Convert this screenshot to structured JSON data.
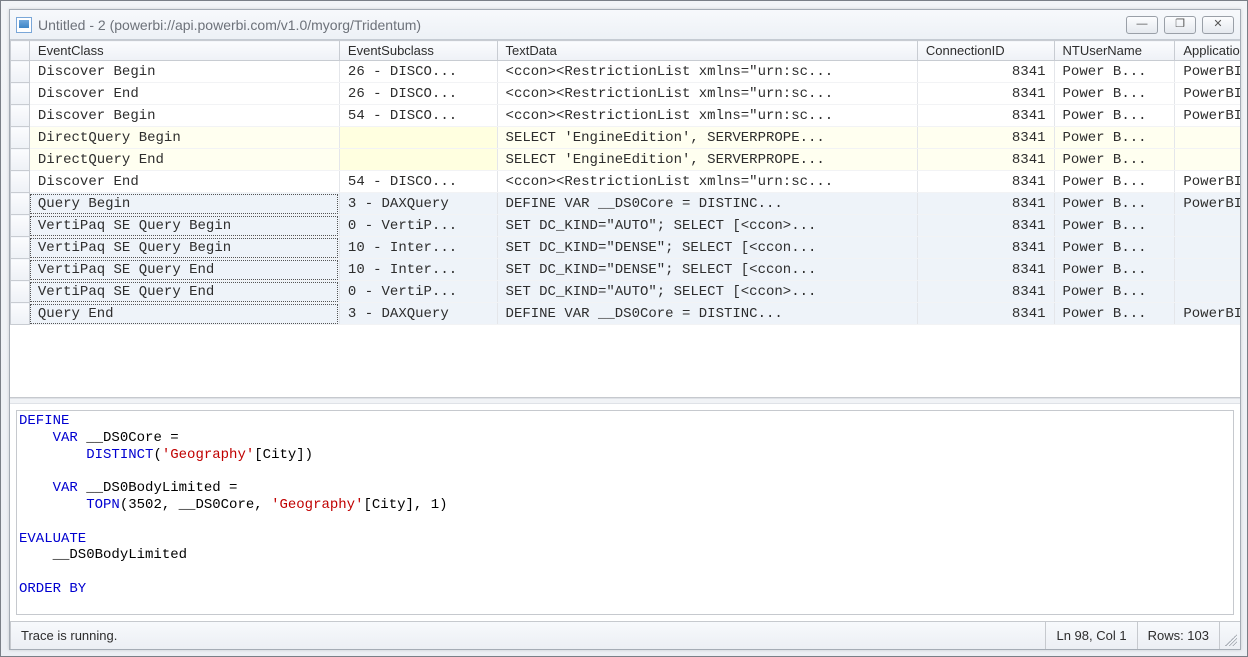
{
  "window": {
    "title": "Untitled - 2 (powerbi://api.powerbi.com/v1.0/myorg/Tridentum)"
  },
  "columns": {
    "event": "EventClass",
    "sub": "EventSubclass",
    "text": "TextData",
    "conn": "ConnectionID",
    "user": "NTUserName",
    "app": "Application"
  },
  "rows": [
    {
      "event": "Discover Begin",
      "sub": "26 - DISCO...",
      "text": "<ccon><RestrictionList xmlns=\"urn:sc...",
      "conn": "8341",
      "user": "Power B...",
      "app": "PowerBI",
      "cls": ""
    },
    {
      "event": "Discover End",
      "sub": "26 - DISCO...",
      "text": "<ccon><RestrictionList xmlns=\"urn:sc...",
      "conn": "8341",
      "user": "Power B...",
      "app": "PowerBI",
      "cls": ""
    },
    {
      "event": "Discover Begin",
      "sub": "54 - DISCO...",
      "text": "<ccon><RestrictionList xmlns=\"urn:sc...",
      "conn": "8341",
      "user": "Power B...",
      "app": "PowerBI",
      "cls": ""
    },
    {
      "event": "DirectQuery Begin",
      "sub": "",
      "text": " SELECT 'EngineEdition', SERVERPROPE...",
      "conn": "8341",
      "user": "Power B...",
      "app": "",
      "cls": "row-yellow"
    },
    {
      "event": "DirectQuery End",
      "sub": "",
      "text": " SELECT 'EngineEdition', SERVERPROPE...",
      "conn": "8341",
      "user": "Power B...",
      "app": "",
      "cls": "row-yellow"
    },
    {
      "event": "Discover End",
      "sub": "54 - DISCO...",
      "text": "<ccon><RestrictionList xmlns=\"urn:sc...",
      "conn": "8341",
      "user": "Power B...",
      "app": "PowerBI",
      "cls": ""
    },
    {
      "event": "Query Begin",
      "sub": "3 - DAXQuery",
      "text": "DEFINE   VAR __DS0Core =     DISTINC...",
      "conn": "8341",
      "user": "Power B...",
      "app": "PowerBI",
      "cls": "row-sel"
    },
    {
      "event": "VertiPaq SE Query Begin",
      "sub": "0 - VertiP...",
      "text": "SET DC_KIND=\"AUTO\";  SELECT  [<ccon>...",
      "conn": "8341",
      "user": "Power B...",
      "app": "",
      "cls": "row-sel"
    },
    {
      "event": "VertiPaq SE Query Begin",
      "sub": "10 - Inter...",
      "text": "SET DC_KIND=\"DENSE\";  SELECT  [<ccon...",
      "conn": "8341",
      "user": "Power B...",
      "app": "",
      "cls": "row-sel"
    },
    {
      "event": "VertiPaq SE Query End",
      "sub": "10 - Inter...",
      "text": "SET DC_KIND=\"DENSE\";  SELECT  [<ccon...",
      "conn": "8341",
      "user": "Power B...",
      "app": "",
      "cls": "row-sel"
    },
    {
      "event": "VertiPaq SE Query End",
      "sub": "0 - VertiP...",
      "text": "SET DC_KIND=\"AUTO\";  SELECT  [<ccon>...",
      "conn": "8341",
      "user": "Power B...",
      "app": "",
      "cls": "row-sel"
    },
    {
      "event": "Query End",
      "sub": "3 - DAXQuery",
      "text": "DEFINE   VAR __DS0Core =     DISTINC...",
      "conn": "8341",
      "user": "Power B...",
      "app": "PowerBI",
      "cls": "row-sel"
    }
  ],
  "detail": {
    "segments": [
      {
        "t": "DEFINE",
        "c": "kw"
      },
      {
        "t": "\n    ",
        "c": ""
      },
      {
        "t": "VAR",
        "c": "kw"
      },
      {
        "t": " __DS0Core = \n        ",
        "c": ""
      },
      {
        "t": "DISTINCT",
        "c": "kw"
      },
      {
        "t": "(",
        "c": ""
      },
      {
        "t": "'Geography'",
        "c": "str"
      },
      {
        "t": "[City])\n\n    ",
        "c": ""
      },
      {
        "t": "VAR",
        "c": "kw"
      },
      {
        "t": " __DS0BodyLimited = \n        ",
        "c": ""
      },
      {
        "t": "TOPN",
        "c": "kw"
      },
      {
        "t": "(",
        "c": ""
      },
      {
        "t": "3502",
        "c": ""
      },
      {
        "t": ", __DS0Core, ",
        "c": ""
      },
      {
        "t": "'Geography'",
        "c": "str"
      },
      {
        "t": "[City], ",
        "c": ""
      },
      {
        "t": "1",
        "c": ""
      },
      {
        "t": ")\n\n",
        "c": ""
      },
      {
        "t": "EVALUATE",
        "c": "kw"
      },
      {
        "t": "\n    __DS0BodyLimited\n\n",
        "c": ""
      },
      {
        "t": "ORDER BY",
        "c": "kw"
      }
    ]
  },
  "status": {
    "text": "Trace is running.",
    "pos": "Ln 98, Col 1",
    "rows": "Rows: 103"
  }
}
